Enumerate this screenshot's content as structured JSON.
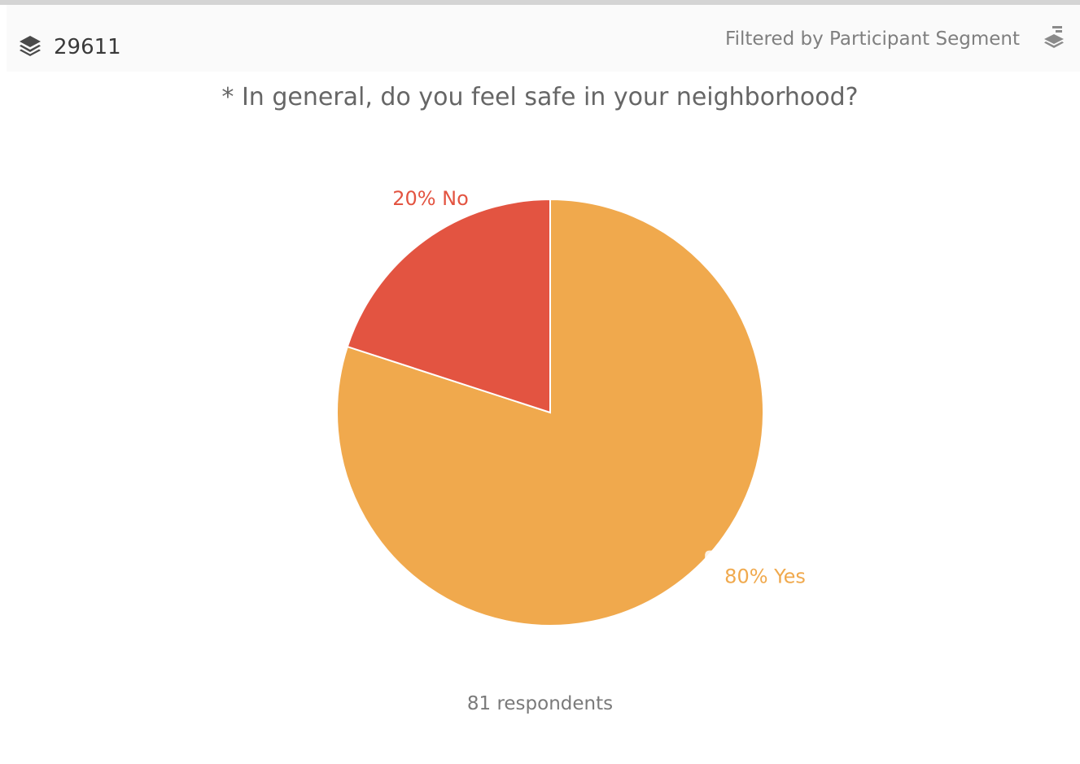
{
  "header": {
    "segment_icon": "layers-icon",
    "segment_name": "29611",
    "filter_text": "Filtered by Participant Segment",
    "filter_icon": "layers-filter-icon"
  },
  "colors": {
    "yes": "#f0a94d",
    "no": "#e35441",
    "text_primary": "#3a3a3a",
    "text_muted": "#7f7f7f"
  },
  "chart_data": {
    "type": "pie",
    "title": "* In general, do you feel safe in your neighborhood?",
    "slices": [
      {
        "label": "Yes",
        "value": 80,
        "color": "#f0a94d",
        "display": "80% Yes"
      },
      {
        "label": "No",
        "value": 20,
        "color": "#e35441",
        "display": "20% No"
      }
    ],
    "footer": "81 respondents",
    "legend": "none"
  }
}
